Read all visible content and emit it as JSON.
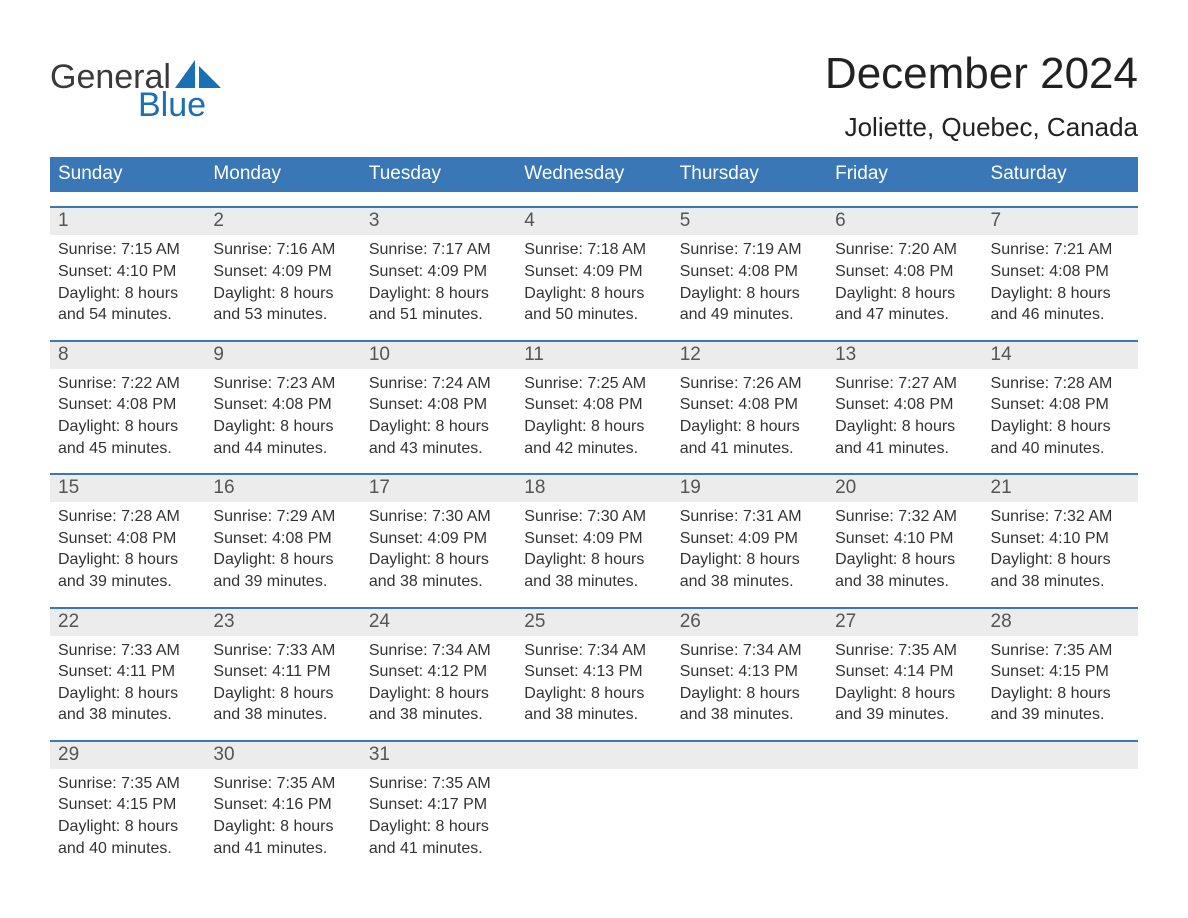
{
  "brand": {
    "word1": "General",
    "word2": "Blue",
    "color": "#1b6fb5"
  },
  "title": "December 2024",
  "location": "Joliette, Quebec, Canada",
  "colors": {
    "header_bg": "#3a77b6",
    "row_bg": "#ececec",
    "row_border": "#3a77b6",
    "page_bg": "#ffffff",
    "text": "#333333"
  },
  "fonts": {
    "title_size": 44,
    "location_size": 26,
    "dow_size": 19,
    "daynum_size": 19,
    "body_size": 16
  },
  "labels": {
    "sunrise": "Sunrise:",
    "sunset": "Sunset:",
    "daylight": "Daylight:"
  },
  "dow": [
    "Sunday",
    "Monday",
    "Tuesday",
    "Wednesday",
    "Thursday",
    "Friday",
    "Saturday"
  ],
  "weeks": [
    [
      {
        "n": "1",
        "sunrise": "7:15 AM",
        "sunset": "4:10 PM",
        "dl1": "8 hours",
        "dl2": "and 54 minutes."
      },
      {
        "n": "2",
        "sunrise": "7:16 AM",
        "sunset": "4:09 PM",
        "dl1": "8 hours",
        "dl2": "and 53 minutes."
      },
      {
        "n": "3",
        "sunrise": "7:17 AM",
        "sunset": "4:09 PM",
        "dl1": "8 hours",
        "dl2": "and 51 minutes."
      },
      {
        "n": "4",
        "sunrise": "7:18 AM",
        "sunset": "4:09 PM",
        "dl1": "8 hours",
        "dl2": "and 50 minutes."
      },
      {
        "n": "5",
        "sunrise": "7:19 AM",
        "sunset": "4:08 PM",
        "dl1": "8 hours",
        "dl2": "and 49 minutes."
      },
      {
        "n": "6",
        "sunrise": "7:20 AM",
        "sunset": "4:08 PM",
        "dl1": "8 hours",
        "dl2": "and 47 minutes."
      },
      {
        "n": "7",
        "sunrise": "7:21 AM",
        "sunset": "4:08 PM",
        "dl1": "8 hours",
        "dl2": "and 46 minutes."
      }
    ],
    [
      {
        "n": "8",
        "sunrise": "7:22 AM",
        "sunset": "4:08 PM",
        "dl1": "8 hours",
        "dl2": "and 45 minutes."
      },
      {
        "n": "9",
        "sunrise": "7:23 AM",
        "sunset": "4:08 PM",
        "dl1": "8 hours",
        "dl2": "and 44 minutes."
      },
      {
        "n": "10",
        "sunrise": "7:24 AM",
        "sunset": "4:08 PM",
        "dl1": "8 hours",
        "dl2": "and 43 minutes."
      },
      {
        "n": "11",
        "sunrise": "7:25 AM",
        "sunset": "4:08 PM",
        "dl1": "8 hours",
        "dl2": "and 42 minutes."
      },
      {
        "n": "12",
        "sunrise": "7:26 AM",
        "sunset": "4:08 PM",
        "dl1": "8 hours",
        "dl2": "and 41 minutes."
      },
      {
        "n": "13",
        "sunrise": "7:27 AM",
        "sunset": "4:08 PM",
        "dl1": "8 hours",
        "dl2": "and 41 minutes."
      },
      {
        "n": "14",
        "sunrise": "7:28 AM",
        "sunset": "4:08 PM",
        "dl1": "8 hours",
        "dl2": "and 40 minutes."
      }
    ],
    [
      {
        "n": "15",
        "sunrise": "7:28 AM",
        "sunset": "4:08 PM",
        "dl1": "8 hours",
        "dl2": "and 39 minutes."
      },
      {
        "n": "16",
        "sunrise": "7:29 AM",
        "sunset": "4:08 PM",
        "dl1": "8 hours",
        "dl2": "and 39 minutes."
      },
      {
        "n": "17",
        "sunrise": "7:30 AM",
        "sunset": "4:09 PM",
        "dl1": "8 hours",
        "dl2": "and 38 minutes."
      },
      {
        "n": "18",
        "sunrise": "7:30 AM",
        "sunset": "4:09 PM",
        "dl1": "8 hours",
        "dl2": "and 38 minutes."
      },
      {
        "n": "19",
        "sunrise": "7:31 AM",
        "sunset": "4:09 PM",
        "dl1": "8 hours",
        "dl2": "and 38 minutes."
      },
      {
        "n": "20",
        "sunrise": "7:32 AM",
        "sunset": "4:10 PM",
        "dl1": "8 hours",
        "dl2": "and 38 minutes."
      },
      {
        "n": "21",
        "sunrise": "7:32 AM",
        "sunset": "4:10 PM",
        "dl1": "8 hours",
        "dl2": "and 38 minutes."
      }
    ],
    [
      {
        "n": "22",
        "sunrise": "7:33 AM",
        "sunset": "4:11 PM",
        "dl1": "8 hours",
        "dl2": "and 38 minutes."
      },
      {
        "n": "23",
        "sunrise": "7:33 AM",
        "sunset": "4:11 PM",
        "dl1": "8 hours",
        "dl2": "and 38 minutes."
      },
      {
        "n": "24",
        "sunrise": "7:34 AM",
        "sunset": "4:12 PM",
        "dl1": "8 hours",
        "dl2": "and 38 minutes."
      },
      {
        "n": "25",
        "sunrise": "7:34 AM",
        "sunset": "4:13 PM",
        "dl1": "8 hours",
        "dl2": "and 38 minutes."
      },
      {
        "n": "26",
        "sunrise": "7:34 AM",
        "sunset": "4:13 PM",
        "dl1": "8 hours",
        "dl2": "and 38 minutes."
      },
      {
        "n": "27",
        "sunrise": "7:35 AM",
        "sunset": "4:14 PM",
        "dl1": "8 hours",
        "dl2": "and 39 minutes."
      },
      {
        "n": "28",
        "sunrise": "7:35 AM",
        "sunset": "4:15 PM",
        "dl1": "8 hours",
        "dl2": "and 39 minutes."
      }
    ],
    [
      {
        "n": "29",
        "sunrise": "7:35 AM",
        "sunset": "4:15 PM",
        "dl1": "8 hours",
        "dl2": "and 40 minutes."
      },
      {
        "n": "30",
        "sunrise": "7:35 AM",
        "sunset": "4:16 PM",
        "dl1": "8 hours",
        "dl2": "and 41 minutes."
      },
      {
        "n": "31",
        "sunrise": "7:35 AM",
        "sunset": "4:17 PM",
        "dl1": "8 hours",
        "dl2": "and 41 minutes."
      },
      null,
      null,
      null,
      null
    ]
  ]
}
